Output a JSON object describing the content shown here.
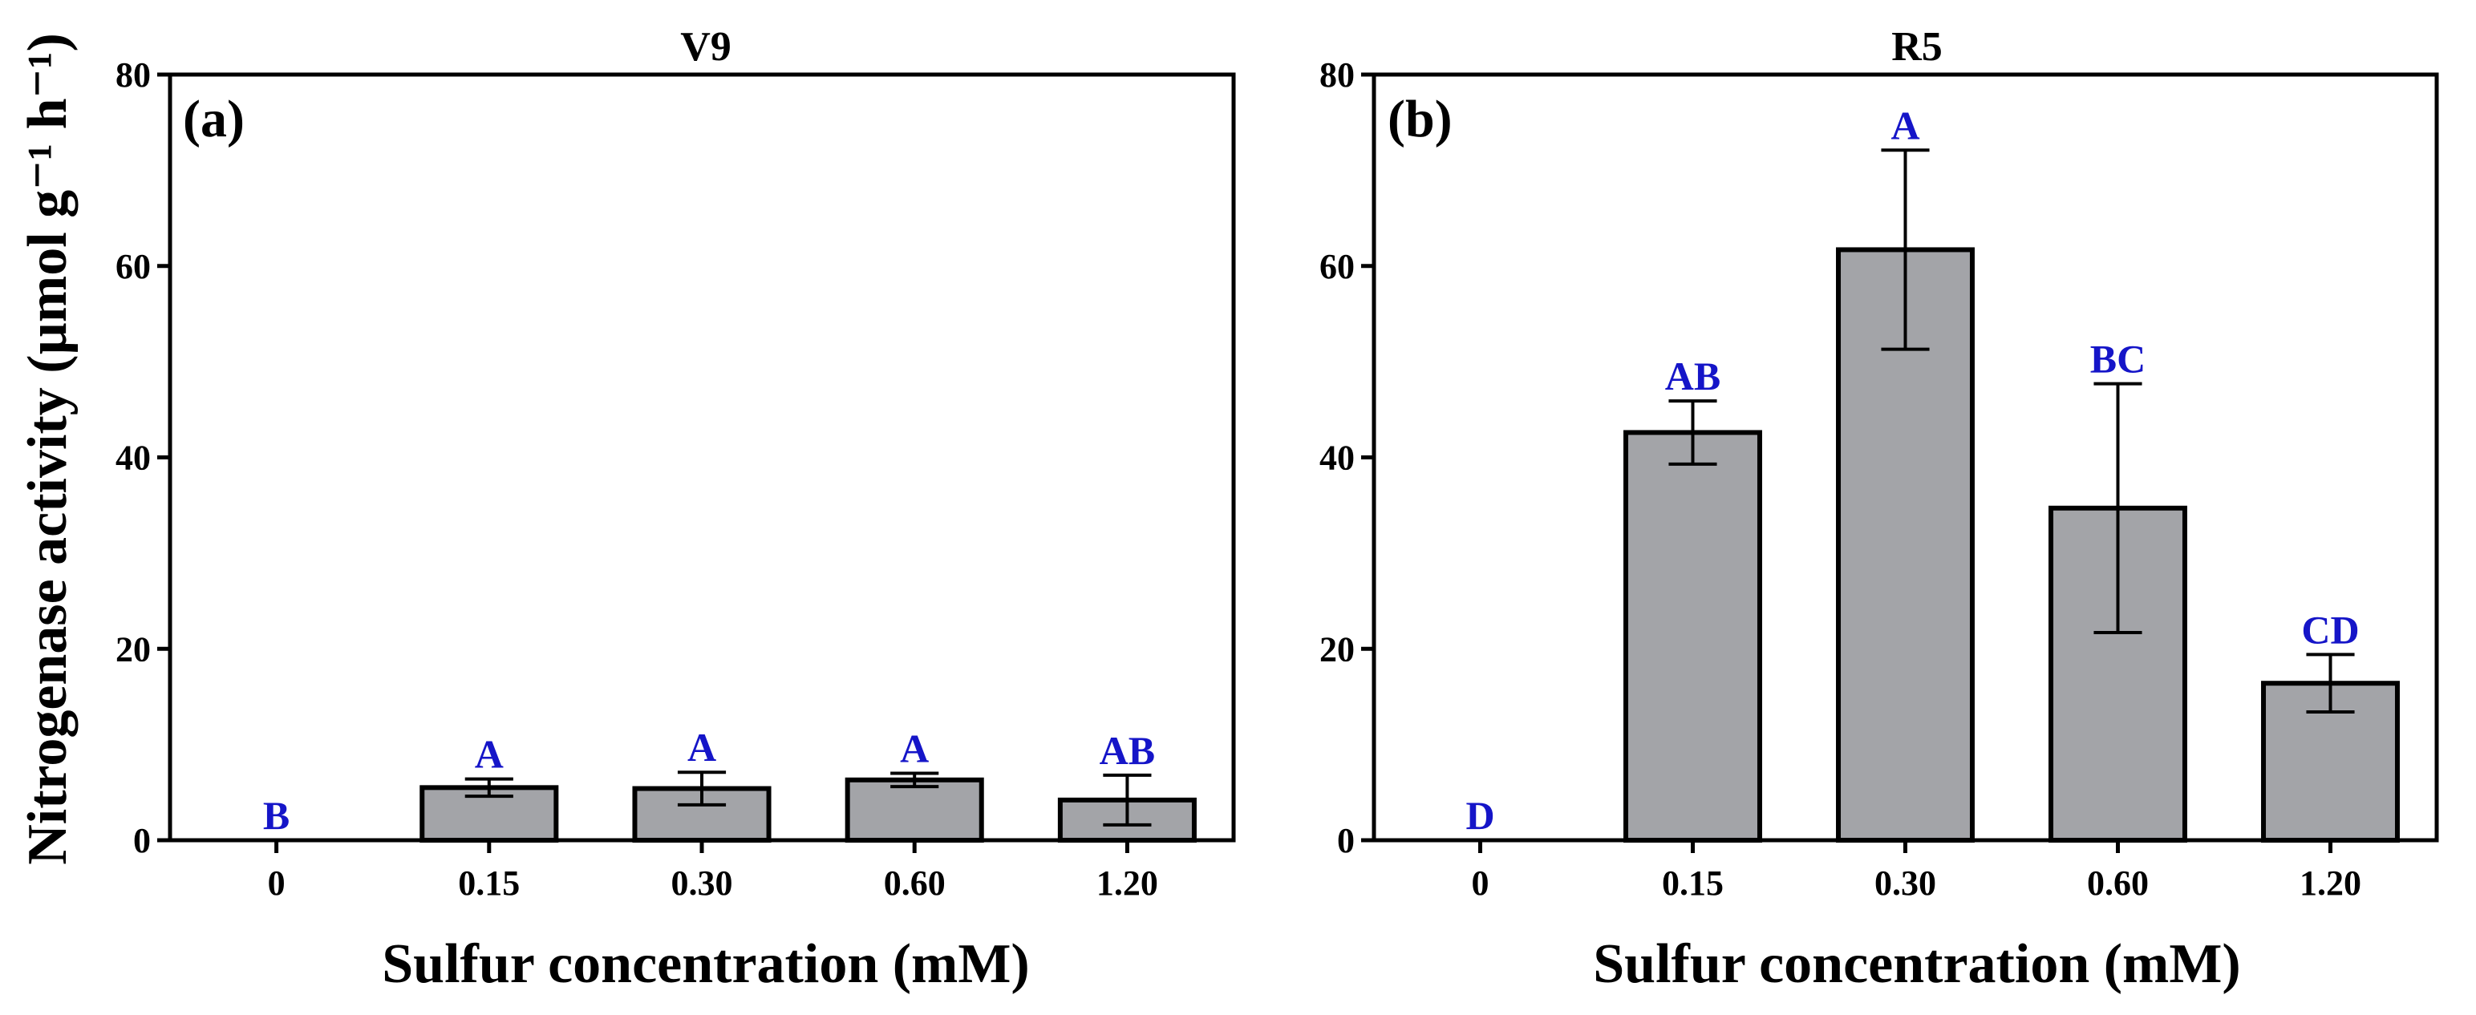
{
  "y_axis_label": "Nitrogenase activity (µmol g⁻¹ h⁻¹)",
  "colors": {
    "bar_fill": "#a3a4a8",
    "letter": "#1515c8",
    "axis": "#000000"
  },
  "chart_data": [
    {
      "type": "bar",
      "panel": "(a)",
      "title": "V9",
      "xlabel": "Sulfur concentration (mM)",
      "ylabel": "Nitrogenase activity (µmol g⁻¹ h⁻¹)",
      "ylim": [
        0,
        80
      ],
      "yticks": [
        "0",
        "20",
        "40",
        "60",
        "80"
      ],
      "categories": [
        "0",
        "0.15",
        "0.30",
        "0.60",
        "1.20"
      ],
      "values": [
        0,
        5.5,
        5.4,
        6.3,
        4.2
      ],
      "errors": [
        0,
        0.9,
        1.7,
        0.7,
        2.6
      ],
      "letters": [
        "B",
        "A",
        "A",
        "A",
        "AB"
      ]
    },
    {
      "type": "bar",
      "panel": "(b)",
      "title": "R5",
      "xlabel": "Sulfur concentration (mM)",
      "ylabel": "",
      "ylim": [
        0,
        80
      ],
      "yticks": [
        "0",
        "20",
        "40",
        "60",
        "80"
      ],
      "categories": [
        "0",
        "0.15",
        "0.30",
        "0.60",
        "1.20"
      ],
      "values": [
        0,
        42.6,
        61.7,
        34.7,
        16.4
      ],
      "errors": [
        0,
        3.3,
        10.4,
        13.0,
        3.0
      ],
      "letters": [
        "D",
        "AB",
        "A",
        "BC",
        "CD"
      ]
    }
  ]
}
